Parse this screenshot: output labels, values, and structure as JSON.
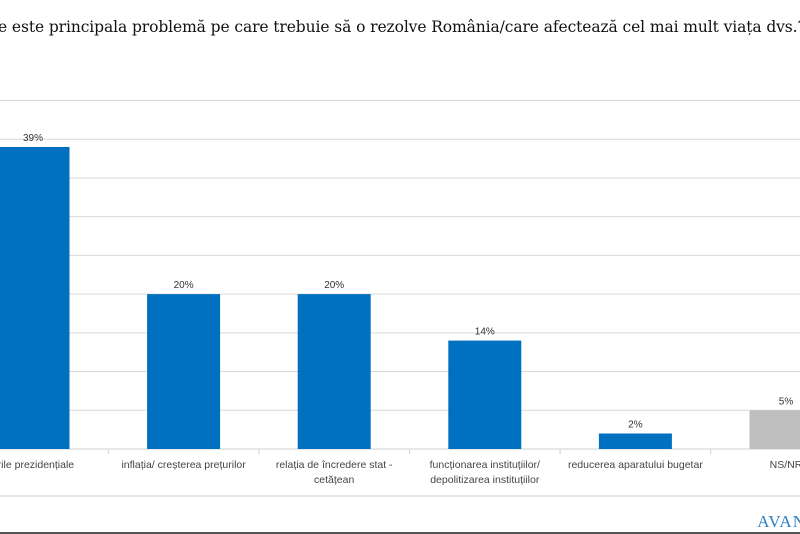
{
  "chart_data": {
    "type": "bar",
    "title": "e este principala problemă pe care trebuie să o rezolve România/care afectează cel mai mult viața dvs.?",
    "categories": [
      [
        "erile  prezidențiale"
      ],
      [
        "inflația/ creșterea prețurilor"
      ],
      [
        "relația de încredere stat -",
        "cetățean"
      ],
      [
        "funcționarea instituțiilor/",
        "depolitizarea instituțiilor"
      ],
      [
        "reducerea aparatului bugetar"
      ],
      [
        "NS/NR"
      ]
    ],
    "values": [
      39,
      20,
      20,
      14,
      2,
      5
    ],
    "data_labels": [
      "39%",
      "20%",
      "20%",
      "14%",
      "2%",
      "5%"
    ],
    "colors": [
      "#0070c0",
      "#0070c0",
      "#0070c0",
      "#0070c0",
      "#0070c0",
      "#bfbfbf"
    ],
    "ylim": [
      0,
      45
    ],
    "grid": true,
    "grid_step": 5,
    "xlabel": "",
    "ylabel": ""
  },
  "logo": "AVAN"
}
